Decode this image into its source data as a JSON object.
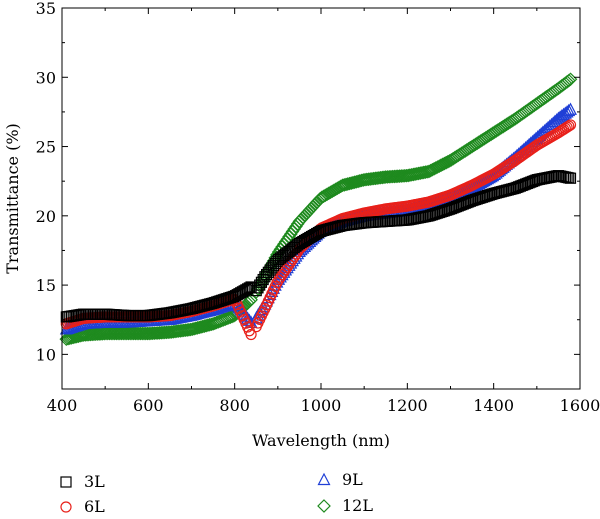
{
  "chart_data": {
    "type": "scatter",
    "xlabel": "Wavelength (nm)",
    "ylabel": "Transmittance (%)",
    "xlim": [
      400,
      1600
    ],
    "ylim": [
      7.5,
      35
    ],
    "xticks": [
      400,
      600,
      800,
      1000,
      1200,
      1400,
      1600
    ],
    "yticks": [
      10,
      15,
      20,
      25,
      30,
      35
    ],
    "grid": false,
    "legend_position": "bottom",
    "series": [
      {
        "name": "3L",
        "marker": "square",
        "color": "#000000",
        "x": [
          410,
          450,
          500,
          550,
          600,
          650,
          700,
          750,
          800,
          840,
          850,
          870,
          900,
          950,
          1000,
          1050,
          1100,
          1150,
          1200,
          1250,
          1300,
          1350,
          1400,
          1450,
          1500,
          1550,
          1580
        ],
        "y": [
          12.7,
          12.9,
          12.9,
          12.8,
          12.8,
          13.0,
          13.3,
          13.7,
          14.2,
          14.9,
          14.6,
          15.6,
          16.8,
          18.0,
          18.9,
          19.3,
          19.5,
          19.6,
          19.7,
          20.0,
          20.5,
          21.1,
          21.6,
          22.0,
          22.6,
          22.9,
          22.7
        ]
      },
      {
        "name": "6L",
        "marker": "circle",
        "color": "#e8201a",
        "x": [
          410,
          450,
          500,
          550,
          600,
          650,
          700,
          750,
          800,
          840,
          850,
          870,
          900,
          950,
          1000,
          1050,
          1100,
          1150,
          1200,
          1250,
          1300,
          1350,
          1400,
          1450,
          1500,
          1550,
          1580
        ],
        "y": [
          12.2,
          12.6,
          12.7,
          12.7,
          12.7,
          12.8,
          13.1,
          13.5,
          14.0,
          11.3,
          12.0,
          13.3,
          15.3,
          17.6,
          19.1,
          19.8,
          20.2,
          20.5,
          20.7,
          21.0,
          21.5,
          22.2,
          23.0,
          24.0,
          25.1,
          26.0,
          26.6
        ]
      },
      {
        "name": "9L",
        "marker": "triangle",
        "color": "#1f3fd6",
        "x": [
          410,
          450,
          500,
          550,
          600,
          650,
          700,
          750,
          800,
          840,
          850,
          870,
          900,
          950,
          1000,
          1050,
          1100,
          1150,
          1200,
          1250,
          1300,
          1350,
          1400,
          1450,
          1500,
          1550,
          1580
        ],
        "y": [
          11.8,
          12.2,
          12.3,
          12.3,
          12.4,
          12.5,
          12.8,
          13.2,
          13.7,
          12.2,
          12.6,
          13.6,
          15.3,
          17.4,
          18.9,
          19.6,
          20.0,
          20.2,
          20.4,
          20.8,
          21.3,
          22.0,
          22.9,
          24.2,
          25.6,
          27.0,
          27.7
        ]
      },
      {
        "name": "12L",
        "marker": "diamond",
        "color": "#1e8a1e",
        "x": [
          410,
          450,
          500,
          550,
          600,
          650,
          700,
          750,
          800,
          840,
          850,
          870,
          900,
          950,
          1000,
          1050,
          1100,
          1150,
          1200,
          1250,
          1300,
          1350,
          1400,
          1450,
          1500,
          1550,
          1580
        ],
        "y": [
          11.1,
          11.4,
          11.5,
          11.5,
          11.5,
          11.6,
          11.8,
          12.2,
          12.8,
          14.0,
          14.5,
          15.6,
          17.3,
          19.6,
          21.3,
          22.2,
          22.6,
          22.8,
          22.9,
          23.2,
          24.0,
          25.0,
          26.0,
          27.0,
          28.1,
          29.2,
          29.9
        ]
      }
    ]
  }
}
